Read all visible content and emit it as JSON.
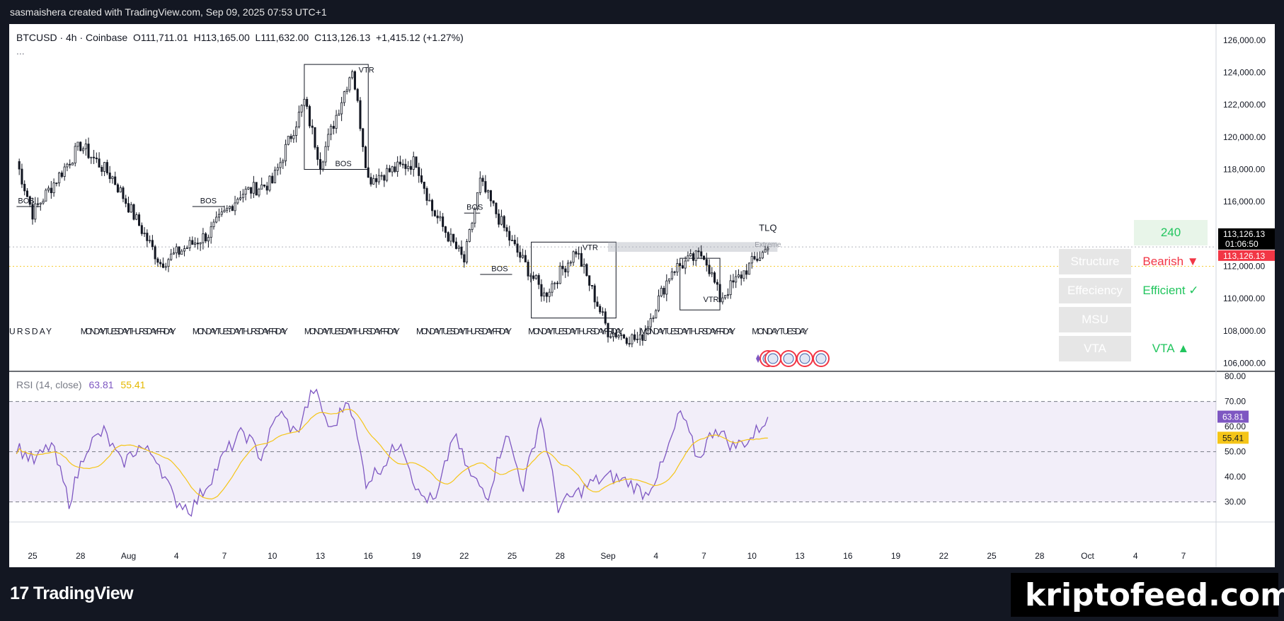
{
  "header": {
    "watermark_line": "sasmaishera created with TradingView.com, Sep 09, 2025 07:53 UTC+1"
  },
  "legend": {
    "symbol": "BTCUSD · 4h · Coinbase",
    "o_label": "O",
    "o": "111,711.01",
    "h_label": "H",
    "h": "113,165.00",
    "l_label": "L",
    "l": "111,632.00",
    "c_label": "C",
    "c": "113,126.13",
    "change": "+1,415.12 (+1.27%)",
    "more": "..."
  },
  "price_axis": {
    "ticks": [
      "126,000.00",
      "124,000.00",
      "122,000.00",
      "120,000.00",
      "118,000.00",
      "116,000.00",
      "114,000.00",
      "112,000.00",
      "110,000.00",
      "108,000.00",
      "106,000.00"
    ],
    "last_price": "113,126.13",
    "countdown": "01:06:50",
    "last_price_tag_color": "#000000",
    "secondary_tag_color": "#f23645"
  },
  "rsi": {
    "title": "RSI (14, close)",
    "rsi_value": "63.81",
    "ma_value": "55.41",
    "ticks": [
      "80.00",
      "70.00",
      "60.00",
      "50.00",
      "40.00",
      "30.00"
    ],
    "rsi_color": "#7e57c2",
    "ma_color": "#f5c518"
  },
  "time_axis": {
    "ticks": [
      "25",
      "28",
      "Aug",
      "4",
      "7",
      "10",
      "13",
      "16",
      "19",
      "22",
      "25",
      "28",
      "Sep",
      "4",
      "7",
      "10",
      "13",
      "16",
      "19",
      "22",
      "25",
      "28",
      "Oct",
      "4",
      "7"
    ]
  },
  "annotations": {
    "vtr": "VTR",
    "bos": "BOS",
    "tlq": "TLQ",
    "extreme": "Extreme",
    "session_labels": [
      "URSDAY",
      "MONDAY TUESDAY THURSDAY FRIDAY",
      "MONDAY TUESDAY THURSDAY FRIDAY",
      "MONDAY TUESDAY THURSDAY FRIDAY",
      "MONDAY TUESDAY THURSDAY FRIDAY",
      "MONDAY TUESDAY THURSDAY FRIDAY",
      "MONDAY TUESDAY THURSDAY FRIDAY",
      "MONDAY TUESDAY"
    ]
  },
  "table": {
    "timeframe": "240",
    "rows": [
      {
        "label": "Structure",
        "value": "Bearish ▼",
        "color": "#f23645"
      },
      {
        "label": "Effeciency",
        "value": "Efficient ✓",
        "color": "#22c55e"
      },
      {
        "label": "MSU",
        "value": "",
        "color": "#22c55e"
      },
      {
        "label": "VTA",
        "value": "VTA ▲",
        "color": "#22c55e"
      }
    ]
  },
  "chart_data": {
    "type": "candlestick",
    "title": "",
    "symbol": "BTCUSD",
    "interval": "4h",
    "exchange": "Coinbase",
    "ylim": [
      105500,
      127000
    ],
    "last_close": 113126.13,
    "key_points": [
      {
        "date": "Jul 24",
        "price": 118500
      },
      {
        "date": "Jul 25",
        "price": 115300
      },
      {
        "date": "Jul 28",
        "price": 119500
      },
      {
        "date": "Jul 30",
        "price": 117500
      },
      {
        "date": "Aug 2",
        "price": 112200
      },
      {
        "date": "Aug 5",
        "price": 114000
      },
      {
        "date": "Aug 7",
        "price": 116500
      },
      {
        "date": "Aug 9",
        "price": 117200
      },
      {
        "date": "Aug 11",
        "price": 122200
      },
      {
        "date": "Aug 12",
        "price": 118400
      },
      {
        "date": "Aug 14",
        "price": 124300
      },
      {
        "date": "Aug 15",
        "price": 117400
      },
      {
        "date": "Aug 18",
        "price": 118500
      },
      {
        "date": "Aug 19",
        "price": 115500
      },
      {
        "date": "Aug 21",
        "price": 112300
      },
      {
        "date": "Aug 22",
        "price": 117200
      },
      {
        "date": "Aug 24",
        "price": 113400
      },
      {
        "date": "Aug 26",
        "price": 110200
      },
      {
        "date": "Aug 28",
        "price": 113000
      },
      {
        "date": "Aug 30",
        "price": 108000
      },
      {
        "date": "Sep 1",
        "price": 107400
      },
      {
        "date": "Sep 3",
        "price": 111800
      },
      {
        "date": "Sep 5",
        "price": 112800
      },
      {
        "date": "Sep 6",
        "price": 110000
      },
      {
        "date": "Sep 8",
        "price": 112200
      },
      {
        "date": "Sep 9",
        "price": 113126
      }
    ],
    "rsi_series": [
      {
        "name": "RSI (14, close)",
        "last": 63.81
      },
      {
        "name": "RSI-based MA",
        "last": 55.41
      }
    ],
    "rsi_key_points": [
      52,
      46,
      53,
      30,
      52,
      58,
      45,
      52,
      48,
      31,
      27,
      38,
      50,
      58,
      48,
      66,
      57,
      75,
      58,
      72,
      38,
      45,
      55,
      33,
      30,
      57,
      40,
      33,
      58,
      36,
      64,
      28,
      33,
      38,
      40,
      38,
      33,
      45,
      66,
      47,
      60,
      52,
      55,
      64
    ],
    "rsi_levels": [
      70,
      50,
      30
    ],
    "rsi_ylim": [
      22,
      82
    ],
    "grid": false
  }
}
